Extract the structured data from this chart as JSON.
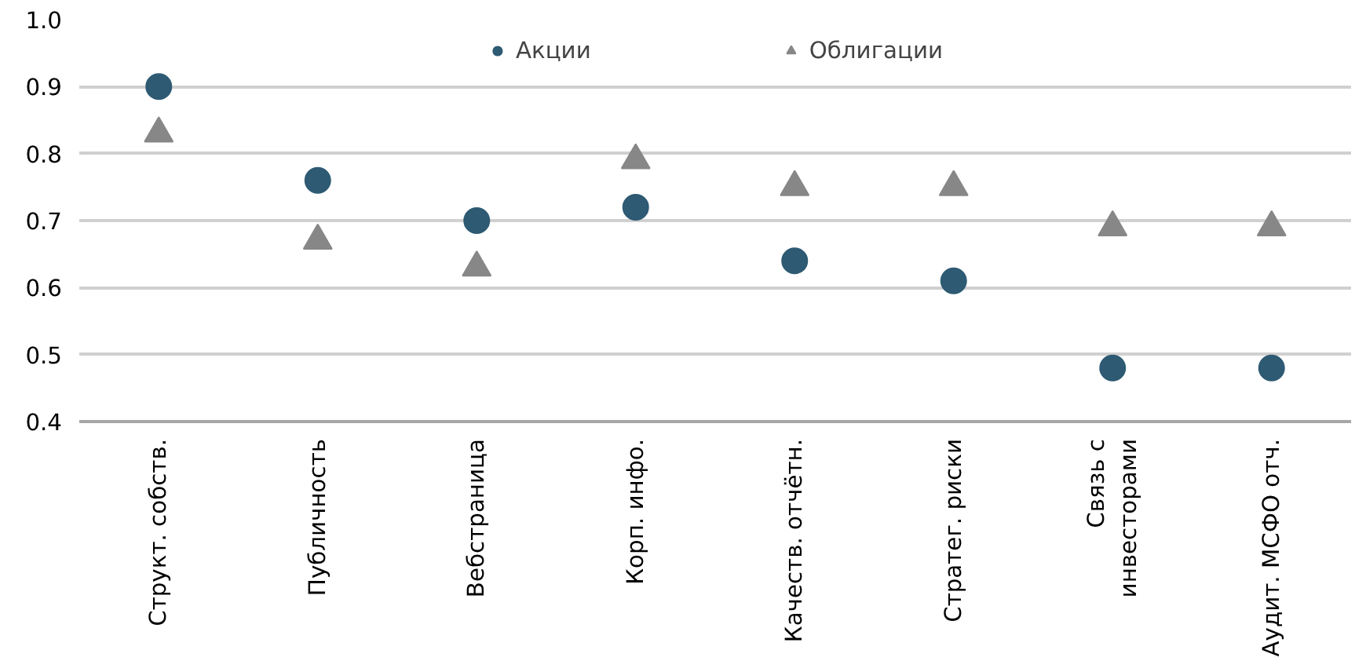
{
  "chart_data": {
    "type": "scatter",
    "categories": [
      "Структ. собств.",
      "Публичность",
      "Вебстраница",
      "Корп. инфо.",
      "Качеств. отчётн.",
      "Стратег. риски",
      "Связь с\nинвесторами",
      "Аудит. МСФО отч."
    ],
    "series": [
      {
        "name": "Акции",
        "color": "#2e5a73",
        "marker": "circle",
        "values": [
          0.9,
          0.76,
          0.7,
          0.72,
          0.64,
          0.61,
          0.48,
          0.48
        ]
      },
      {
        "name": "Облигации",
        "color": "#878787",
        "marker": "triangle",
        "values": [
          0.83,
          0.67,
          0.63,
          0.79,
          0.75,
          0.75,
          0.69,
          0.69
        ]
      }
    ],
    "ylim": [
      0.4,
      1.0
    ],
    "yticks": [
      {
        "value": 0.4,
        "label": "0.4"
      },
      {
        "value": 0.5,
        "label": "0.5"
      },
      {
        "value": 0.6,
        "label": "0.6"
      },
      {
        "value": 0.7,
        "label": "0.7"
      },
      {
        "value": 0.8,
        "label": "0.8"
      },
      {
        "value": 0.9,
        "label": "0.9"
      },
      {
        "value": 1.0,
        "label": "1.0"
      }
    ],
    "grid": "y",
    "legend": "top"
  }
}
